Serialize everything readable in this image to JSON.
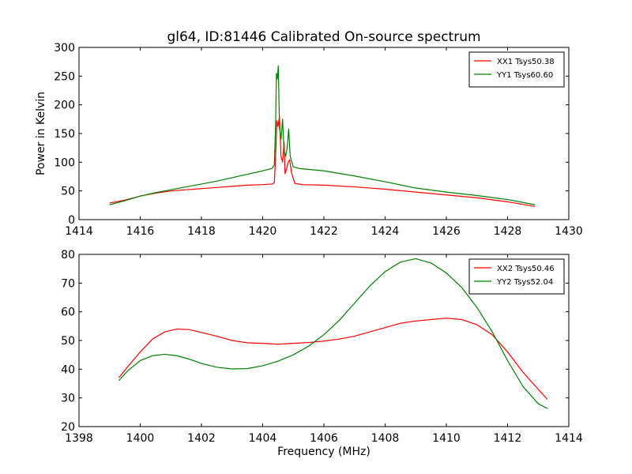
{
  "chart_data": [
    {
      "type": "line",
      "title": "gl64, ID:81446 Calibrated On-source spectrum",
      "xlabel": "",
      "ylabel": "Power in Kelvin",
      "xlim": [
        1414,
        1430
      ],
      "ylim": [
        0,
        300
      ],
      "xticks": [
        1414,
        1416,
        1418,
        1420,
        1422,
        1424,
        1426,
        1428,
        1430
      ],
      "yticks": [
        0,
        50,
        100,
        150,
        200,
        250,
        300
      ],
      "legend_position": "top-right",
      "grid": false,
      "series": [
        {
          "name": "XX1 Tsys50.38",
          "color": "#ff0000",
          "points": [
            [
              1415.0,
              29
            ],
            [
              1415.5,
              34
            ],
            [
              1416.0,
              41
            ],
            [
              1416.5,
              46
            ],
            [
              1417.0,
              50
            ],
            [
              1417.5,
              52
            ],
            [
              1418.0,
              54
            ],
            [
              1418.5,
              56
            ],
            [
              1419.0,
              58
            ],
            [
              1419.5,
              60
            ],
            [
              1420.0,
              61
            ],
            [
              1420.3,
              62
            ],
            [
              1420.38,
              64
            ],
            [
              1420.43,
              120
            ],
            [
              1420.46,
              172
            ],
            [
              1420.5,
              162
            ],
            [
              1420.55,
              180
            ],
            [
              1420.6,
              110
            ],
            [
              1420.65,
              100
            ],
            [
              1420.7,
              135
            ],
            [
              1420.73,
              80
            ],
            [
              1420.78,
              88
            ],
            [
              1420.83,
              100
            ],
            [
              1420.88,
              104
            ],
            [
              1420.95,
              80
            ],
            [
              1421.05,
              63
            ],
            [
              1421.3,
              61
            ],
            [
              1422.0,
              60
            ],
            [
              1423.0,
              57
            ],
            [
              1424.0,
              53
            ],
            [
              1425.0,
              48
            ],
            [
              1426.0,
              43
            ],
            [
              1427.0,
              38
            ],
            [
              1428.0,
              31
            ],
            [
              1428.9,
              23
            ]
          ]
        },
        {
          "name": "YY1 Tsys60.60",
          "color": "#008000",
          "points": [
            [
              1415.0,
              26
            ],
            [
              1415.5,
              33
            ],
            [
              1416.0,
              41
            ],
            [
              1416.5,
              47
            ],
            [
              1417.0,
              52
            ],
            [
              1417.5,
              57
            ],
            [
              1418.0,
              62
            ],
            [
              1418.5,
              67
            ],
            [
              1419.0,
              73
            ],
            [
              1419.5,
              79
            ],
            [
              1420.0,
              85
            ],
            [
              1420.3,
              89
            ],
            [
              1420.38,
              95
            ],
            [
              1420.42,
              160
            ],
            [
              1420.45,
              255
            ],
            [
              1420.48,
              245
            ],
            [
              1420.51,
              268
            ],
            [
              1420.55,
              160
            ],
            [
              1420.6,
              140
            ],
            [
              1420.65,
              175
            ],
            [
              1420.7,
              120
            ],
            [
              1420.75,
              110
            ],
            [
              1420.8,
              125
            ],
            [
              1420.85,
              158
            ],
            [
              1420.9,
              110
            ],
            [
              1421.0,
              92
            ],
            [
              1421.2,
              89
            ],
            [
              1422.0,
              85
            ],
            [
              1423.0,
              76
            ],
            [
              1424.0,
              66
            ],
            [
              1425.0,
              55
            ],
            [
              1426.0,
              48
            ],
            [
              1427.0,
              42
            ],
            [
              1428.0,
              35
            ],
            [
              1428.9,
              26
            ]
          ]
        }
      ]
    },
    {
      "type": "line",
      "title": "",
      "xlabel": "Frequency (MHz)",
      "ylabel": "",
      "xlim": [
        1398,
        1414
      ],
      "ylim": [
        20,
        80
      ],
      "xticks": [
        1398,
        1400,
        1402,
        1404,
        1406,
        1408,
        1410,
        1412,
        1414
      ],
      "yticks": [
        20,
        30,
        40,
        50,
        60,
        70,
        80
      ],
      "legend_position": "top-right",
      "grid": false,
      "series": [
        {
          "name": "XX2 Tsys50.46",
          "color": "#ff0000",
          "points": [
            [
              1399.3,
              37
            ],
            [
              1399.6,
              41
            ],
            [
              1400.0,
              46
            ],
            [
              1400.4,
              50.5
            ],
            [
              1400.8,
              53
            ],
            [
              1401.2,
              54
            ],
            [
              1401.6,
              53.8
            ],
            [
              1402.0,
              52.8
            ],
            [
              1402.5,
              51.5
            ],
            [
              1403.0,
              50
            ],
            [
              1403.5,
              49.2
            ],
            [
              1404.0,
              49
            ],
            [
              1404.5,
              48.7
            ],
            [
              1405.0,
              49
            ],
            [
              1405.5,
              49.3
            ],
            [
              1406.0,
              49.8
            ],
            [
              1406.5,
              50.5
            ],
            [
              1407.0,
              51.5
            ],
            [
              1407.5,
              53
            ],
            [
              1408.0,
              54.5
            ],
            [
              1408.5,
              56
            ],
            [
              1409.0,
              56.8
            ],
            [
              1409.5,
              57.3
            ],
            [
              1410.0,
              57.8
            ],
            [
              1410.5,
              57.3
            ],
            [
              1411.0,
              55.5
            ],
            [
              1411.5,
              52
            ],
            [
              1412.0,
              46
            ],
            [
              1412.5,
              39
            ],
            [
              1413.0,
              33
            ],
            [
              1413.3,
              29.5
            ]
          ]
        },
        {
          "name": "YY2 Tsys52.04",
          "color": "#008000",
          "points": [
            [
              1399.3,
              36
            ],
            [
              1399.6,
              39.5
            ],
            [
              1400.0,
              43
            ],
            [
              1400.4,
              44.7
            ],
            [
              1400.8,
              45.2
            ],
            [
              1401.2,
              44.7
            ],
            [
              1401.6,
              43.5
            ],
            [
              1402.0,
              42
            ],
            [
              1402.5,
              40.7
            ],
            [
              1403.0,
              40.1
            ],
            [
              1403.5,
              40.2
            ],
            [
              1404.0,
              41.2
            ],
            [
              1404.5,
              42.8
            ],
            [
              1405.0,
              45
            ],
            [
              1405.5,
              48
            ],
            [
              1406.0,
              52
            ],
            [
              1406.5,
              57
            ],
            [
              1407.0,
              63
            ],
            [
              1407.5,
              69
            ],
            [
              1408.0,
              74
            ],
            [
              1408.5,
              77.3
            ],
            [
              1409.0,
              78.5
            ],
            [
              1409.5,
              77
            ],
            [
              1410.0,
              73.5
            ],
            [
              1410.5,
              68.5
            ],
            [
              1411.0,
              61.5
            ],
            [
              1411.5,
              53
            ],
            [
              1412.0,
              43
            ],
            [
              1412.5,
              34
            ],
            [
              1413.0,
              28
            ],
            [
              1413.3,
              26.3
            ]
          ]
        }
      ]
    }
  ]
}
